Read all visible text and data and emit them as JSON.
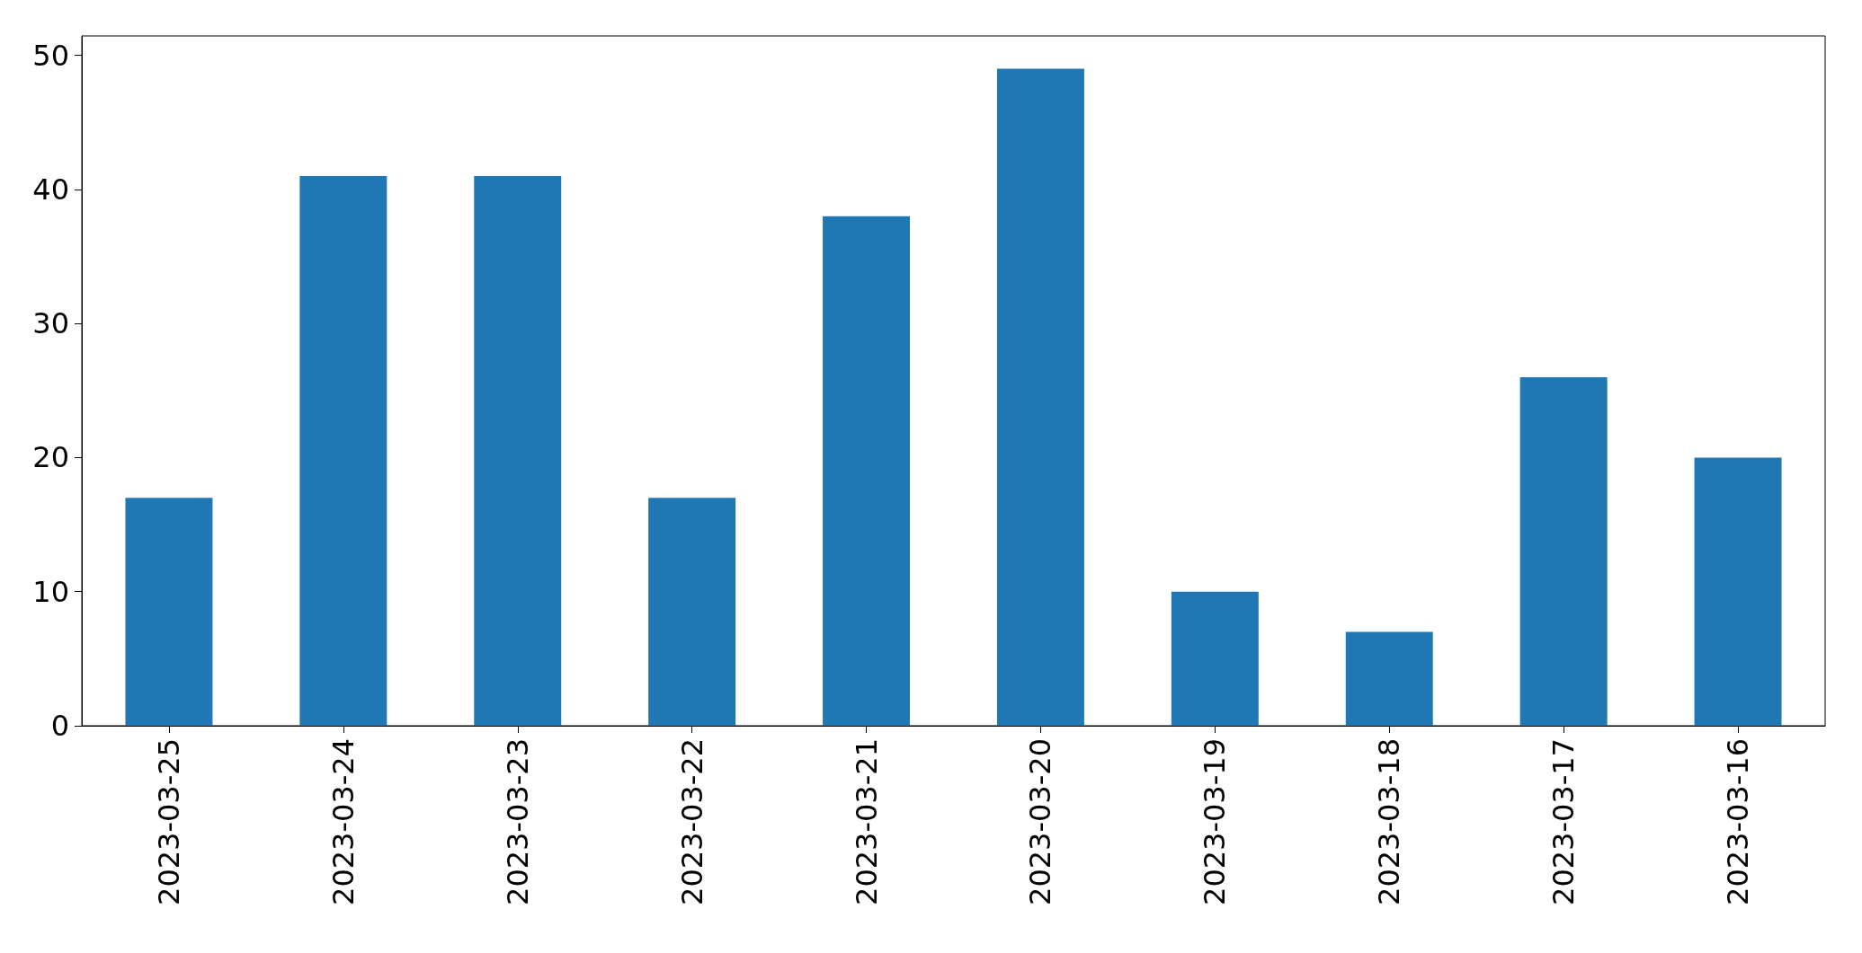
{
  "chart_data": {
    "type": "bar",
    "categories": [
      "2023-03-25",
      "2023-03-24",
      "2023-03-23",
      "2023-03-22",
      "2023-03-21",
      "2023-03-20",
      "2023-03-19",
      "2023-03-18",
      "2023-03-17",
      "2023-03-16"
    ],
    "values": [
      17,
      41,
      41,
      17,
      38,
      49,
      10,
      7,
      26,
      20
    ],
    "color": "#1f77b4",
    "ylim": [
      0,
      51.45
    ],
    "yticks": [
      0,
      10,
      20,
      30,
      40,
      50
    ],
    "grid": false
  }
}
